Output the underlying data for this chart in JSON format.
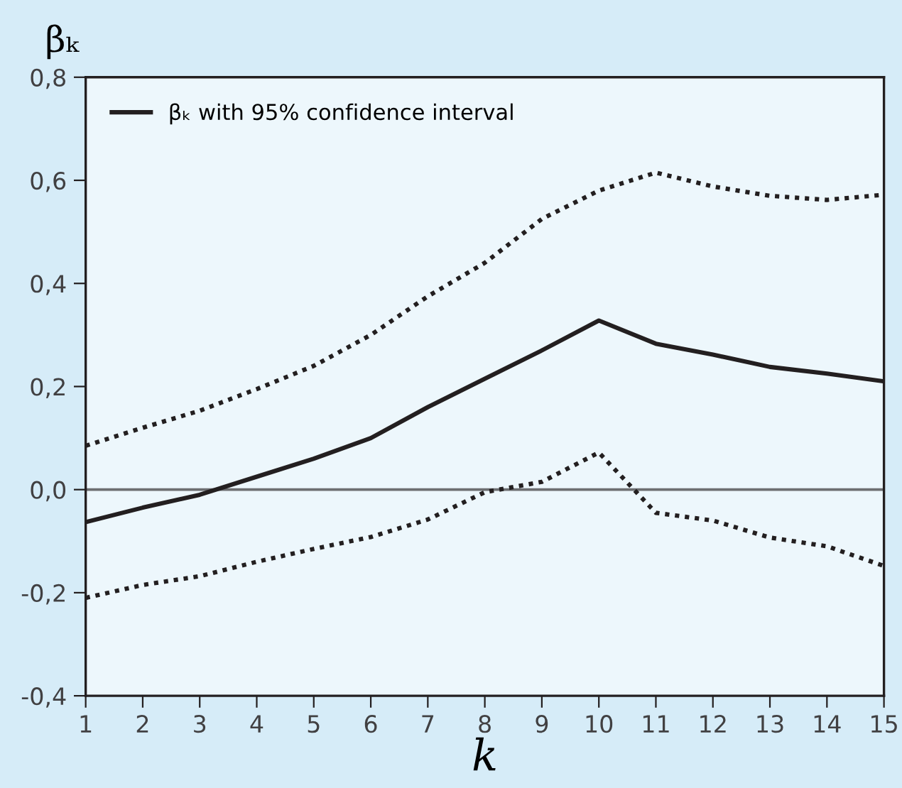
{
  "chart_data": {
    "type": "line",
    "ylabel": "βₖ",
    "xlabel": "k",
    "x": [
      1,
      2,
      3,
      4,
      5,
      6,
      7,
      8,
      9,
      10,
      11,
      12,
      13,
      14,
      15
    ],
    "series": [
      {
        "name": "βₖ with 95% confidence interval",
        "color": "#231f20",
        "line_style": "solid",
        "values": [
          -0.063,
          -0.035,
          -0.01,
          0.025,
          0.06,
          0.1,
          0.16,
          0.215,
          0.27,
          0.328,
          0.283,
          0.262,
          0.238,
          0.225,
          0.21
        ]
      },
      {
        "color": "#231f20",
        "line_style": "dotted",
        "values": [
          0.085,
          0.12,
          0.153,
          0.195,
          0.24,
          0.3,
          0.375,
          0.44,
          0.525,
          0.58,
          0.615,
          0.588,
          0.57,
          0.562,
          0.572
        ]
      },
      {
        "color": "#231f20",
        "line_style": "dotted",
        "values": [
          -0.21,
          -0.185,
          -0.168,
          -0.14,
          -0.115,
          -0.092,
          -0.058,
          -0.005,
          0.015,
          0.072,
          -0.045,
          -0.06,
          -0.093,
          -0.11,
          -0.148
        ]
      }
    ],
    "xlim": [
      1,
      15
    ],
    "xticks": [
      1,
      2,
      3,
      4,
      5,
      6,
      7,
      8,
      9,
      10,
      11,
      12,
      13,
      14,
      15
    ],
    "ylim": [
      -0.4,
      0.8
    ],
    "yticks": [
      {
        "value": -0.4,
        "label": "-0,4"
      },
      {
        "value": -0.2,
        "label": "-0,2"
      },
      {
        "value": 0.0,
        "label": "0,0"
      },
      {
        "value": 0.2,
        "label": "0,2"
      },
      {
        "value": 0.4,
        "label": "0,4"
      },
      {
        "value": 0.6,
        "label": "0,6"
      },
      {
        "value": 0.8,
        "label": "0,8"
      }
    ],
    "ref_lines": [
      {
        "axis": "y",
        "value": 0,
        "color": "#6d6e71",
        "line_style": "solid"
      }
    ],
    "grid": false,
    "legend": "top left",
    "marker": "none"
  }
}
